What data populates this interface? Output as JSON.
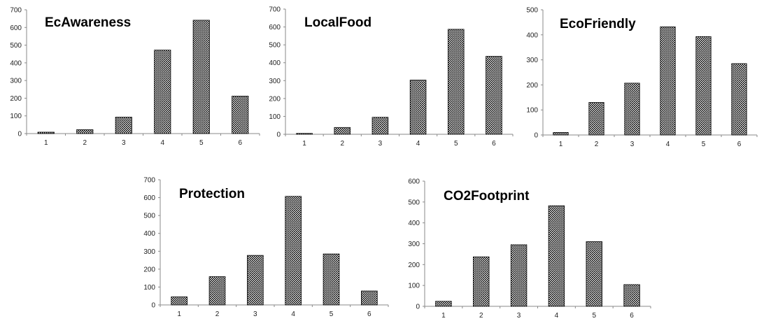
{
  "chart_data": [
    {
      "type": "bar",
      "title": "EcAwareness",
      "categories": [
        "1",
        "2",
        "3",
        "4",
        "5",
        "6"
      ],
      "values": [
        8,
        22,
        93,
        472,
        641,
        212
      ],
      "ylim": [
        0,
        700
      ],
      "yticks": [
        "0",
        "100",
        "200",
        "300",
        "400",
        "500",
        "600",
        "700"
      ],
      "grid": false,
      "legend": false
    },
    {
      "type": "bar",
      "title": "LocalFood",
      "categories": [
        "1",
        "2",
        "3",
        "4",
        "5",
        "6"
      ],
      "values": [
        5,
        38,
        95,
        303,
        587,
        436
      ],
      "ylim": [
        0,
        700
      ],
      "yticks": [
        "0",
        "100",
        "200",
        "300",
        "400",
        "500",
        "600",
        "700"
      ],
      "grid": false,
      "legend": false
    },
    {
      "type": "bar",
      "title": "EcoFriendly",
      "categories": [
        "1",
        "2",
        "3",
        "4",
        "5",
        "6"
      ],
      "values": [
        10,
        130,
        207,
        432,
        393,
        285
      ],
      "ylim": [
        0,
        500
      ],
      "yticks": [
        "0",
        "100",
        "200",
        "300",
        "400",
        "500"
      ],
      "grid": false,
      "legend": false
    },
    {
      "type": "bar",
      "title": "Protection",
      "categories": [
        "1",
        "2",
        "3",
        "4",
        "5",
        "6"
      ],
      "values": [
        45,
        158,
        277,
        607,
        285,
        78
      ],
      "ylim": [
        0,
        700
      ],
      "yticks": [
        "0",
        "100",
        "200",
        "300",
        "400",
        "500",
        "600",
        "700"
      ],
      "grid": false,
      "legend": false
    },
    {
      "type": "bar",
      "title": "CO2Footprint",
      "categories": [
        "1",
        "2",
        "3",
        "4",
        "5",
        "6"
      ],
      "values": [
        24,
        237,
        295,
        482,
        310,
        104
      ],
      "ylim": [
        0,
        600
      ],
      "yticks": [
        "0",
        "100",
        "200",
        "300",
        "400",
        "500",
        "600"
      ],
      "grid": false,
      "legend": false
    }
  ]
}
